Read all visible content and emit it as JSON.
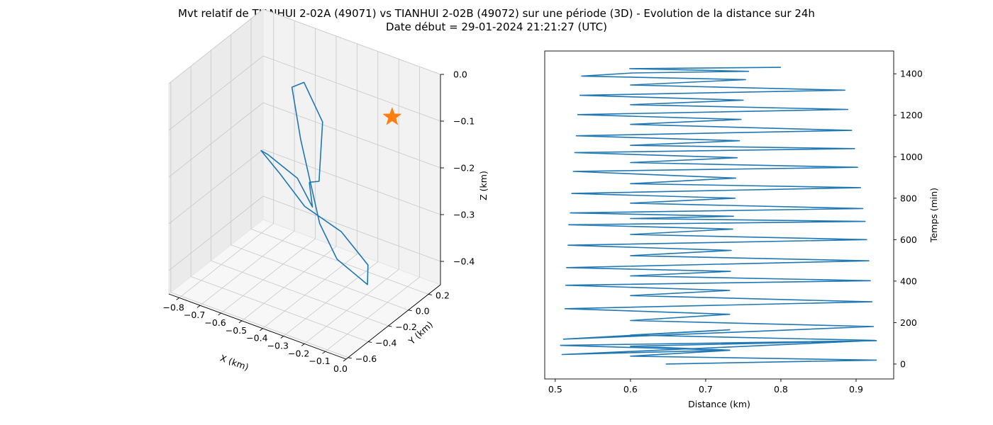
{
  "title": {
    "line1": "Mvt relatif de TIANHUI 2-02A (49071) vs TIANHUI 2-02B (49072) sur une période (3D) - Evolution de la distance sur 24h",
    "line2": "Date début = 29-01-2024 21:21:27 (UTC)"
  },
  "chart_data": [
    {
      "type": "line3d",
      "xlabel": "X (km)",
      "ylabel": "Y (km)",
      "zlabel": "Z (km)",
      "xlim": [
        -0.85,
        0.0
      ],
      "ylim": [
        -0.62,
        0.32
      ],
      "zlim": [
        -0.45,
        0.0
      ],
      "x_ticks": [
        "−0.8",
        "−0.7",
        "−0.6",
        "−0.5",
        "−0.4",
        "−0.3",
        "−0.2",
        "−0.1",
        "0.0"
      ],
      "y_ticks": [
        "−0.6",
        "−0.4",
        "−0.2",
        "0.0",
        "0.2"
      ],
      "z_ticks": [
        "0.0",
        "−0.1",
        "−0.2",
        "−0.3",
        "−0.4"
      ],
      "grid": true,
      "series": [
        {
          "color": "#1f77b4",
          "points": [
            [
              -0.35,
              -0.26,
              -0.19
            ],
            [
              -0.45,
              -0.02,
              -0.3
            ],
            [
              -0.58,
              0.1,
              -0.28
            ],
            [
              -0.66,
              -0.03,
              -0.22
            ],
            [
              -0.6,
              -0.22,
              -0.17
            ],
            [
              -0.48,
              -0.28,
              -0.19
            ],
            [
              -0.42,
              -0.16,
              -0.27
            ],
            [
              -0.35,
              0.06,
              -0.35
            ],
            [
              -0.28,
              0.18,
              -0.43
            ],
            [
              -0.22,
              0.05,
              -0.44
            ],
            [
              -0.27,
              -0.15,
              -0.36
            ],
            [
              -0.3,
              -0.26,
              -0.27
            ],
            [
              -0.42,
              -0.2,
              -0.12
            ],
            [
              -0.51,
              -0.1,
              -0.04
            ],
            [
              -0.51,
              0.02,
              -0.05
            ],
            [
              -0.44,
              0.06,
              -0.13
            ],
            [
              -0.38,
              -0.1,
              -0.22
            ],
            [
              -0.35,
              -0.26,
              -0.19
            ]
          ]
        },
        {
          "color": "#ff7f0e",
          "marker": "star",
          "points": [
            [
              -0.02,
              -0.12,
              -0.02
            ]
          ]
        }
      ]
    },
    {
      "type": "line",
      "xlabel": "Distance (km)",
      "ylabel": "Temps (min)",
      "xlim": [
        0.486,
        0.95
      ],
      "ylim": [
        -72,
        1510
      ],
      "x_ticks": [
        0.5,
        0.6,
        0.7,
        0.8,
        0.9
      ],
      "y_ticks": [
        0,
        200,
        400,
        600,
        800,
        1000,
        1200,
        1400
      ],
      "series": [
        {
          "color": "#1f77b4",
          "x": [
            0.647,
            0.927,
            0.6,
            0.732,
            0.507,
            0.927,
            0.6,
            0.732,
            0.509,
            0.925,
            0.6,
            0.732,
            0.511,
            0.923,
            0.6,
            0.732,
            0.513,
            0.921,
            0.6,
            0.732,
            0.514,
            0.919,
            0.6,
            0.733,
            0.515,
            0.917,
            0.6,
            0.734,
            0.517,
            0.914,
            0.6,
            0.736,
            0.518,
            0.912,
            0.6,
            0.737,
            0.52,
            0.909,
            0.6,
            0.739,
            0.522,
            0.906,
            0.6,
            0.74,
            0.524,
            0.902,
            0.6,
            0.742,
            0.526,
            0.898,
            0.6,
            0.745,
            0.528,
            0.894,
            0.6,
            0.747,
            0.53,
            0.889,
            0.6,
            0.75,
            0.533,
            0.885,
            0.6,
            0.753,
            0.535,
            0.603,
            0.757,
            0.599,
            0.8
          ],
          "y": [
            0,
            19,
            38,
            66,
            90,
            113,
            86,
            67,
            46,
            114,
            140,
            165,
            120,
            181,
            210,
            240,
            267,
            300,
            330,
            355,
            380,
            402,
            425,
            447,
            465,
            498,
            523,
            548,
            573,
            600,
            625,
            651,
            672,
            688,
            702,
            713,
            729,
            750,
            776,
            800,
            823,
            851,
            870,
            897,
            929,
            949,
            972,
            995,
            1020,
            1039,
            1055,
            1077,
            1101,
            1127,
            1156,
            1180,
            1203,
            1228,
            1251,
            1273,
            1296,
            1321,
            1346,
            1372,
            1389,
            1404,
            1412,
            1425,
            1431
          ]
        }
      ]
    }
  ]
}
